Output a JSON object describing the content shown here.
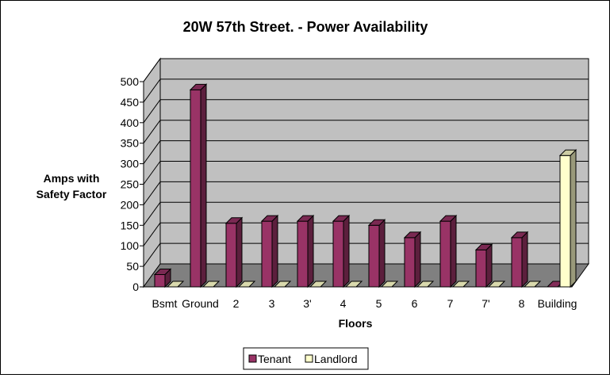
{
  "chart_data": {
    "type": "bar",
    "title": "20W 57th Street. - Power Availability",
    "xlabel": "Floors",
    "ylabel_lines": [
      "Amps with",
      "Safety Factor"
    ],
    "ylim": [
      0,
      500
    ],
    "yticks": [
      "0",
      "50",
      "100",
      "150",
      "200",
      "250",
      "300",
      "350",
      "400",
      "450",
      "500"
    ],
    "categories": [
      "Bsmt",
      "Ground",
      "2",
      "3",
      "3'",
      "4",
      "5",
      "6",
      "7",
      "7'",
      "8",
      "Building"
    ],
    "series": [
      {
        "name": "Tenant",
        "color": "#993366",
        "values": [
          30,
          480,
          155,
          160,
          160,
          160,
          150,
          120,
          160,
          90,
          120,
          0
        ]
      },
      {
        "name": "Landlord",
        "color": "#ffffcc",
        "values": [
          0,
          0,
          0,
          0,
          0,
          0,
          0,
          0,
          0,
          0,
          0,
          320
        ]
      }
    ],
    "grid": true,
    "style": "3d",
    "legend_position": "bottom"
  }
}
